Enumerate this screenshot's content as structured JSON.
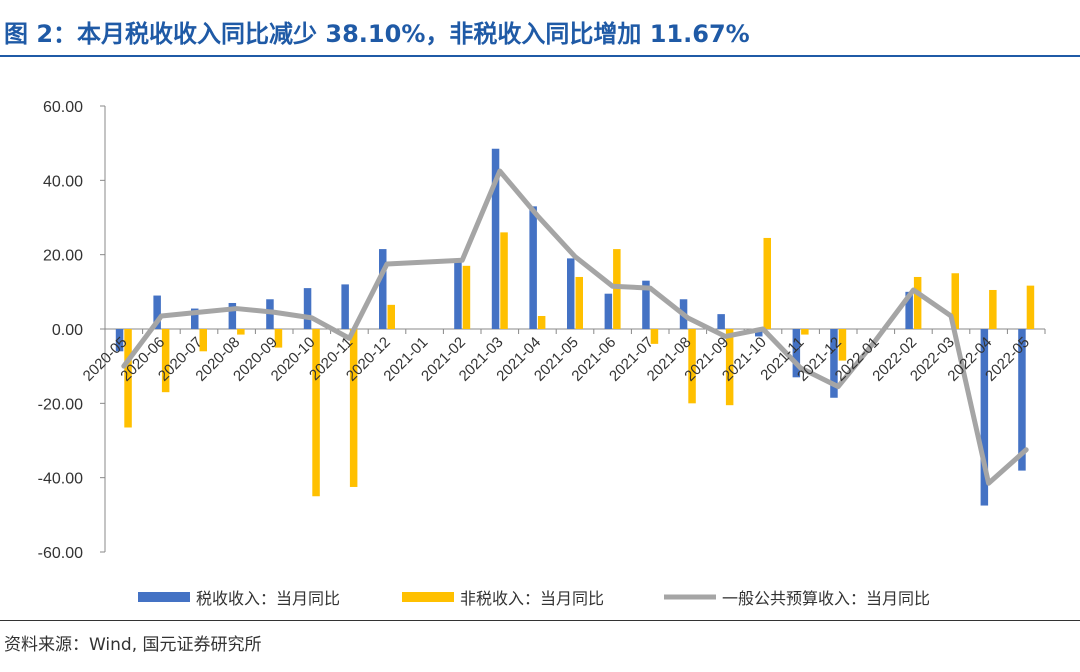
{
  "header": {
    "title": "图 2：本月税收收入同比减少 38.10%，非税收入同比增加 11.67%"
  },
  "footer": {
    "source": "资料来源：Wind, 国元证券研究所"
  },
  "chart_data": {
    "type": "bar",
    "categories": [
      "2020-05",
      "2020-06",
      "2020-07",
      "2020-08",
      "2020-09",
      "2020-10",
      "2020-11",
      "2020-12",
      "2021-01",
      "2021-02",
      "2021-03",
      "2021-04",
      "2021-05",
      "2021-06",
      "2021-07",
      "2021-08",
      "2021-09",
      "2021-10",
      "2021-11",
      "2021-12",
      "2022-01",
      "2022-02",
      "2022-03",
      "2022-04",
      "2022-05"
    ],
    "series": [
      {
        "name": "税收收入：当月同比",
        "type": "bar",
        "color": "#4472c4",
        "values": [
          -6,
          9,
          5.5,
          7,
          8,
          11,
          12,
          21.5,
          null,
          18.5,
          48.5,
          33,
          19,
          9.5,
          13,
          8,
          4,
          -2,
          -13,
          -18.5,
          null,
          10,
          null,
          -47.5,
          -38.1
        ]
      },
      {
        "name": "非税收入：当月同比",
        "type": "bar",
        "color": "#ffc000",
        "values": [
          -26.5,
          -17,
          -6,
          -1.5,
          -5,
          -45,
          -42.5,
          6.5,
          null,
          17,
          26,
          3.5,
          14,
          21.5,
          -4,
          -20,
          -20.5,
          24.5,
          -1.5,
          -8.5,
          null,
          14,
          15,
          10.5,
          11.67
        ]
      },
      {
        "name": "一般公共预算收入：当月同比",
        "type": "line",
        "color": "#a5a5a5",
        "values": [
          -10,
          3.5,
          4.5,
          5.5,
          4.5,
          3,
          -2.5,
          17.5,
          18,
          18.5,
          42.5,
          30.5,
          19.5,
          11.5,
          11,
          3,
          -2,
          0,
          -10.5,
          -15.5,
          -3,
          10.5,
          3.5,
          -41.5,
          -32.5
        ]
      }
    ],
    "ylim": [
      -60,
      60
    ],
    "yticks": [
      "60.00",
      "40.00",
      "20.00",
      "0.00",
      "-20.00",
      "-40.00",
      "-60.00"
    ],
    "legend": "bottom"
  }
}
